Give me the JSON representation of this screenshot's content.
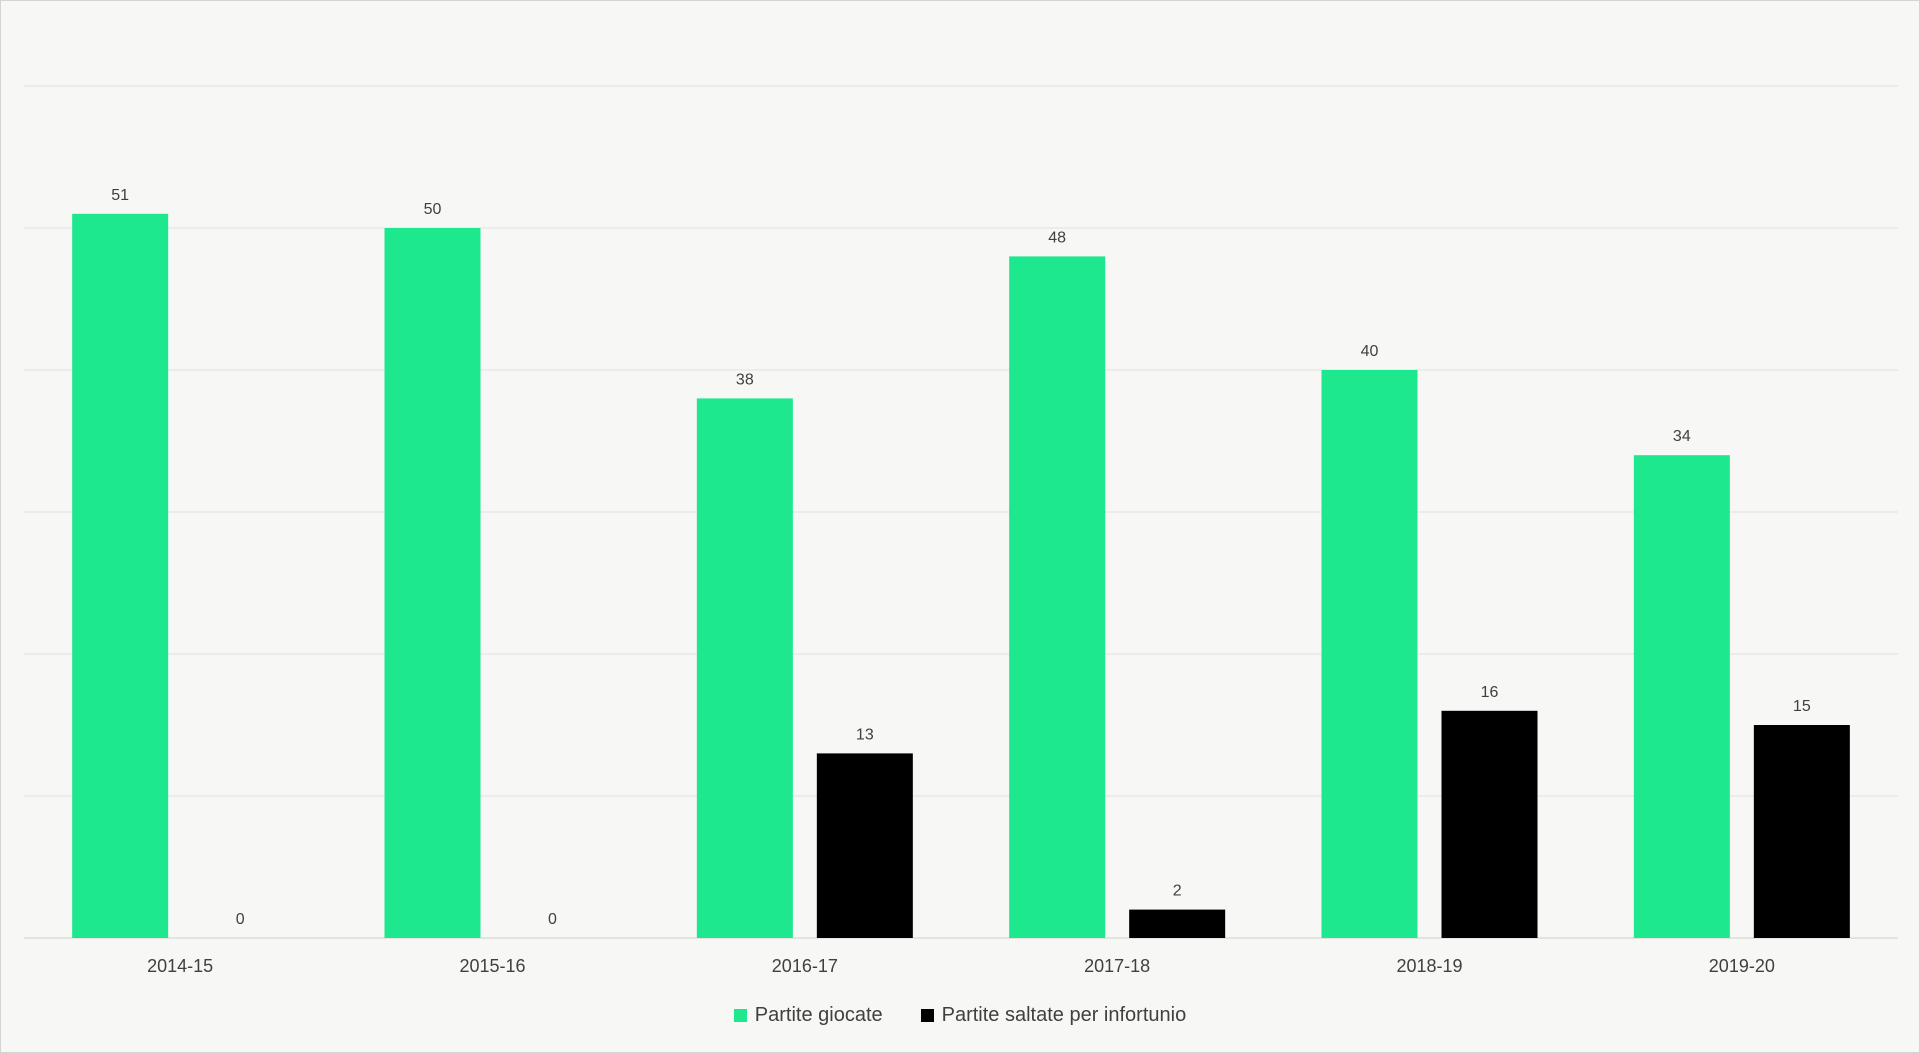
{
  "chart_data": {
    "type": "bar",
    "title": "",
    "xlabel": "",
    "ylabel": "",
    "categories": [
      "2014-15",
      "2015-16",
      "2016-17",
      "2017-18",
      "2018-19",
      "2019-20"
    ],
    "series": [
      {
        "name": "Partite giocate",
        "values": [
          51,
          50,
          38,
          48,
          40,
          34
        ],
        "color": "#1ee88e"
      },
      {
        "name": "Partite saltate per infortunio",
        "values": [
          0,
          0,
          13,
          2,
          16,
          15
        ],
        "color": "#000000"
      }
    ],
    "ylim": [
      0,
      60
    ],
    "grid": true,
    "legend_position": "bottom-center"
  }
}
